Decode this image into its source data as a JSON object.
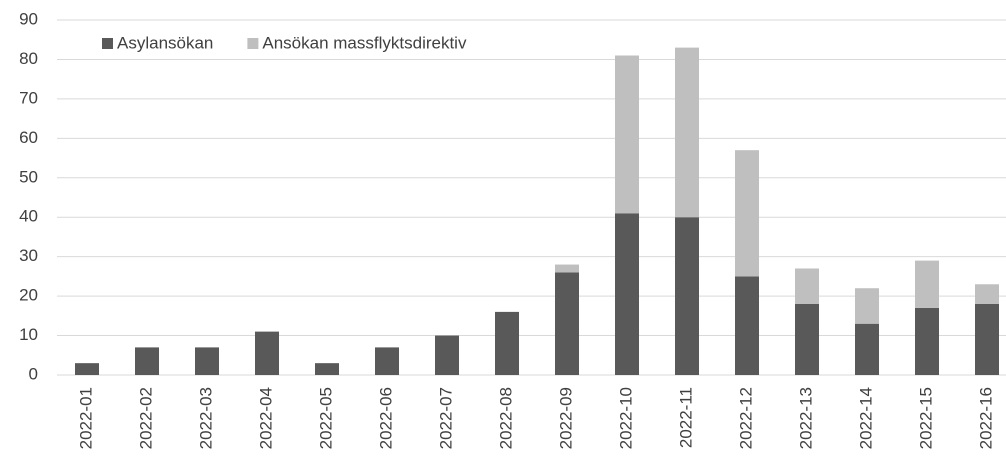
{
  "chart_data": {
    "type": "stacked_bar",
    "categories": [
      "2022-01",
      "2022-02",
      "2022-03",
      "2022-04",
      "2022-05",
      "2022-06",
      "2022-07",
      "2022-08",
      "2022-09",
      "2022-10",
      "2022-11",
      "2022-12",
      "2022-13",
      "2022-14",
      "2022-15",
      "2022-16"
    ],
    "series": [
      {
        "name": "Asylansökan",
        "color": "#595959",
        "values": [
          3,
          7,
          7,
          11,
          3,
          7,
          10,
          16,
          26,
          41,
          40,
          25,
          18,
          13,
          17,
          18
        ]
      },
      {
        "name": "Ansökan massflyktsdirektiv",
        "color": "#bfbfbf",
        "values": [
          0,
          0,
          0,
          0,
          0,
          0,
          0,
          0,
          2,
          40,
          43,
          32,
          9,
          9,
          12,
          5
        ]
      }
    ],
    "ylim": [
      0,
      90
    ],
    "yticks": [
      0,
      10,
      20,
      30,
      40,
      50,
      60,
      70,
      80,
      90
    ],
    "grid": true,
    "legend": "top-left"
  }
}
